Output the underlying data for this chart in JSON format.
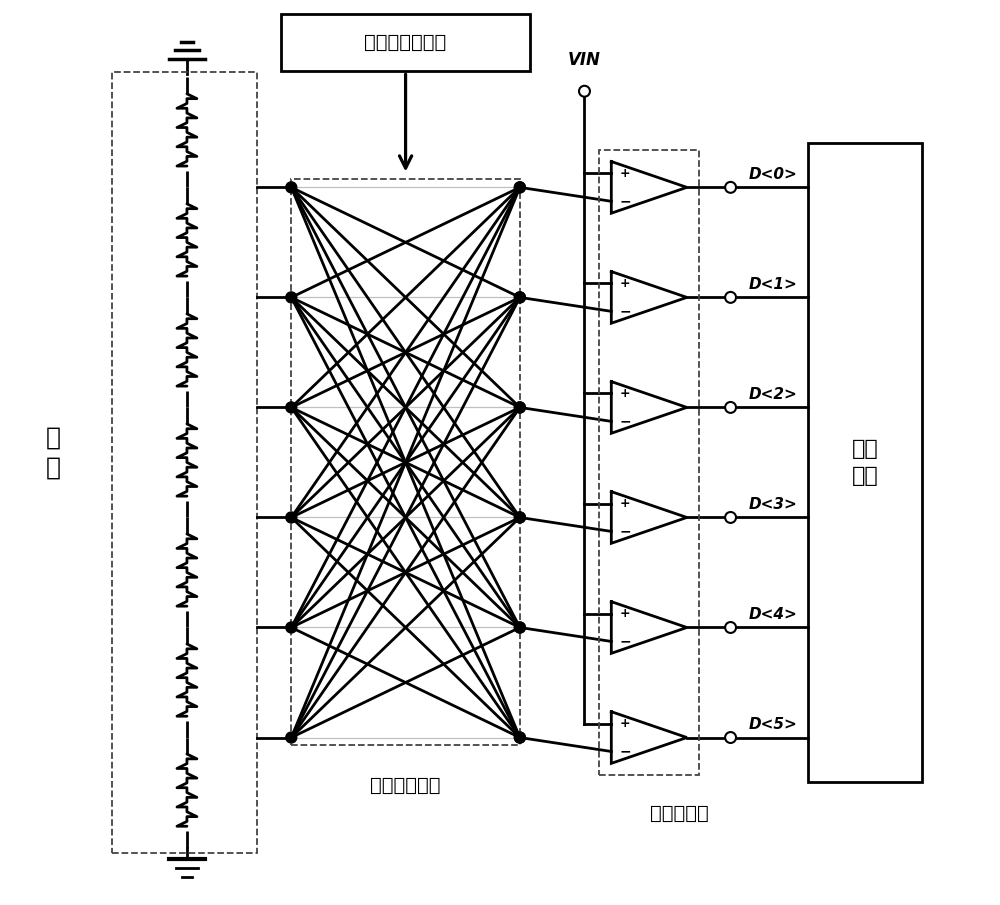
{
  "bg_color": "#ffffff",
  "line_color": "#000000",
  "gray_color": "#c0c0c0",
  "dashed_color": "#444444",
  "prng_label": "伪随机码生成器",
  "resistor_label": "电\n阻",
  "switch_label": "选通开关阵列",
  "comparator_label": "比较器阵列",
  "encoder_label": "编码\n电路",
  "vin_label": "VIN",
  "output_labels": [
    "D<0>",
    "D<1>",
    "D<2>",
    "D<3>",
    "D<4>",
    "D<5>"
  ],
  "n_taps": 6,
  "n_resistors": 7,
  "lw_main": 2.0,
  "lw_dashed": 1.3,
  "lw_gray": 0.9,
  "dot_r": 0.055,
  "open_r": 0.055
}
